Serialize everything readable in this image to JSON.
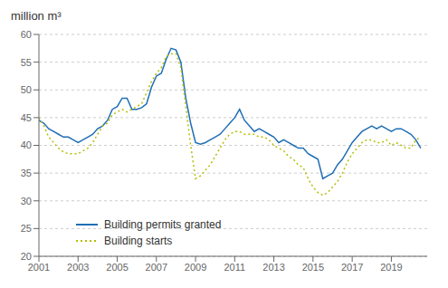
{
  "chart_data": {
    "type": "line",
    "title": "million m³",
    "x": [
      2001.0,
      2001.25,
      2001.5,
      2001.75,
      2002.0,
      2002.25,
      2002.5,
      2002.75,
      2003.0,
      2003.25,
      2003.5,
      2003.75,
      2004.0,
      2004.25,
      2004.5,
      2004.75,
      2005.0,
      2005.25,
      2005.5,
      2005.75,
      2006.0,
      2006.25,
      2006.5,
      2006.75,
      2007.0,
      2007.25,
      2007.5,
      2007.75,
      2008.0,
      2008.25,
      2008.5,
      2008.75,
      2009.0,
      2009.25,
      2009.5,
      2009.75,
      2010.0,
      2010.25,
      2010.5,
      2010.75,
      2011.0,
      2011.25,
      2011.5,
      2011.75,
      2012.0,
      2012.25,
      2012.5,
      2012.75,
      2013.0,
      2013.25,
      2013.5,
      2013.75,
      2014.0,
      2014.25,
      2014.5,
      2014.75,
      2015.0,
      2015.25,
      2015.5,
      2015.75,
      2016.0,
      2016.25,
      2016.5,
      2016.75,
      2017.0,
      2017.25,
      2017.5,
      2017.75,
      2018.0,
      2018.25,
      2018.5,
      2018.75,
      2019.0,
      2019.25,
      2019.5,
      2019.75,
      2020.0,
      2020.25,
      2020.5
    ],
    "series": [
      {
        "name": "Building permits granted",
        "color": "#1f6eb5",
        "line_style": "solid",
        "values": [
          44.5,
          44.0,
          43.0,
          42.5,
          42.0,
          41.5,
          41.5,
          41.0,
          40.5,
          41.0,
          41.5,
          42.0,
          43.0,
          43.5,
          44.5,
          46.5,
          47.0,
          48.5,
          48.5,
          46.5,
          46.5,
          46.8,
          47.5,
          50.5,
          52.5,
          53.0,
          55.5,
          57.5,
          57.2,
          55.0,
          48.5,
          44.0,
          40.5,
          40.2,
          40.5,
          41.0,
          41.5,
          42.0,
          43.0,
          44.0,
          45.0,
          46.5,
          44.5,
          43.5,
          42.5,
          43.0,
          42.5,
          42.0,
          41.5,
          40.5,
          41.0,
          40.5,
          40.0,
          39.5,
          39.5,
          38.5,
          38.0,
          37.5,
          34.0,
          34.5,
          35.0,
          36.5,
          37.5,
          39.0,
          40.5,
          41.5,
          42.5,
          43.0,
          43.5,
          43.0,
          43.5,
          43.0,
          42.5,
          43.0,
          43.0,
          42.5,
          42.0,
          41.0,
          39.5
        ]
      },
      {
        "name": "Building starts",
        "color": "#b5bd00",
        "line_style": "dotted",
        "values": [
          45.0,
          43.5,
          41.5,
          40.5,
          39.5,
          38.8,
          38.5,
          38.5,
          38.5,
          39.0,
          39.5,
          40.5,
          42.0,
          43.5,
          44.0,
          45.5,
          46.0,
          46.5,
          46.0,
          46.5,
          47.0,
          47.5,
          49.5,
          51.5,
          53.0,
          54.0,
          56.0,
          56.5,
          56.5,
          54.0,
          47.0,
          40.0,
          34.0,
          34.5,
          35.5,
          36.5,
          38.0,
          39.5,
          41.0,
          42.0,
          42.5,
          42.5,
          42.0,
          42.0,
          42.0,
          41.5,
          41.5,
          41.0,
          40.0,
          39.5,
          39.0,
          38.0,
          37.5,
          36.5,
          36.0,
          34.0,
          32.5,
          31.5,
          31.0,
          31.5,
          32.5,
          33.5,
          35.0,
          37.0,
          38.5,
          39.5,
          40.5,
          41.0,
          41.0,
          40.5,
          40.5,
          41.0,
          40.0,
          40.5,
          40.0,
          39.5,
          39.5,
          41.0,
          41.5
        ]
      }
    ],
    "xlim": [
      2001.0,
      2020.83
    ],
    "xticks": [
      2001,
      2003,
      2005,
      2007,
      2009,
      2011,
      2013,
      2015,
      2017,
      2019
    ],
    "ylim": [
      20,
      60
    ],
    "yticks": [
      20,
      25,
      30,
      35,
      40,
      45,
      50,
      55,
      60
    ],
    "grid": true,
    "legend": "lower left"
  }
}
